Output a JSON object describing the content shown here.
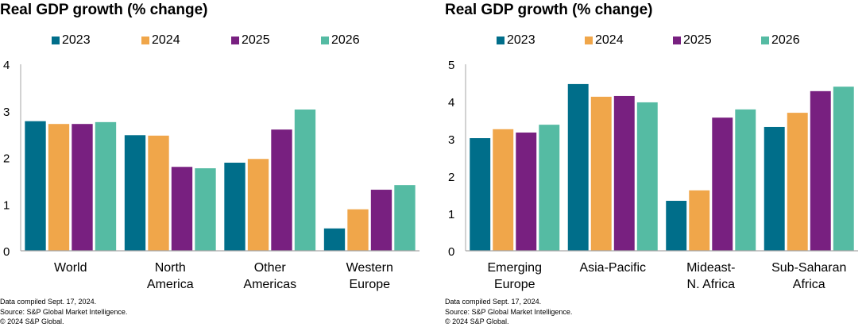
{
  "chart_data": [
    {
      "type": "bar",
      "title": "Real GDP growth (% change)",
      "categories": [
        "World",
        "North\nAmerica",
        "Other\nAmericas",
        "Western\nEurope"
      ],
      "series": [
        {
          "name": "2023",
          "color": "#006E8A",
          "values": [
            2.78,
            2.48,
            1.89,
            0.48
          ]
        },
        {
          "name": "2024",
          "color": "#F0A64A",
          "values": [
            2.72,
            2.47,
            1.97,
            0.89
          ]
        },
        {
          "name": "2025",
          "color": "#782080",
          "values": [
            2.72,
            1.8,
            2.6,
            1.31
          ]
        },
        {
          "name": "2026",
          "color": "#55BBA3",
          "values": [
            2.76,
            1.77,
            3.03,
            1.41
          ]
        }
      ],
      "xlabel": "",
      "ylabel": "",
      "ylim": [
        0,
        4
      ],
      "yticks": [
        "0",
        "1",
        "2",
        "3",
        "4"
      ],
      "grid": false,
      "legend": "top",
      "notes": [
        "Data compiled Sept. 17, 2024.",
        "Source: S&P Global Market Intelligence.",
        "© 2024 S&P Global."
      ]
    },
    {
      "type": "bar",
      "title": "Real GDP growth (% change)",
      "categories": [
        "Emerging\nEurope",
        "Asia-Pacific",
        "Mideast-\nN. Africa",
        "Sub-Saharan\nAfrica"
      ],
      "series": [
        {
          "name": "2023",
          "color": "#006E8A",
          "values": [
            3.02,
            4.47,
            1.34,
            3.32
          ]
        },
        {
          "name": "2024",
          "color": "#F0A64A",
          "values": [
            3.26,
            4.13,
            1.62,
            3.7
          ]
        },
        {
          "name": "2025",
          "color": "#782080",
          "values": [
            3.17,
            4.15,
            3.57,
            4.28
          ]
        },
        {
          "name": "2026",
          "color": "#55BBA3",
          "values": [
            3.38,
            3.98,
            3.79,
            4.4
          ]
        }
      ],
      "xlabel": "",
      "ylabel": "",
      "ylim": [
        0,
        5
      ],
      "yticks": [
        "0",
        "1",
        "2",
        "3",
        "4",
        "5"
      ],
      "grid": false,
      "legend": "top",
      "notes": [
        "Data compiled Sept. 17, 2024.",
        "Source: S&P Global Market Intelligence.",
        "© 2024 S&P Global."
      ]
    }
  ]
}
